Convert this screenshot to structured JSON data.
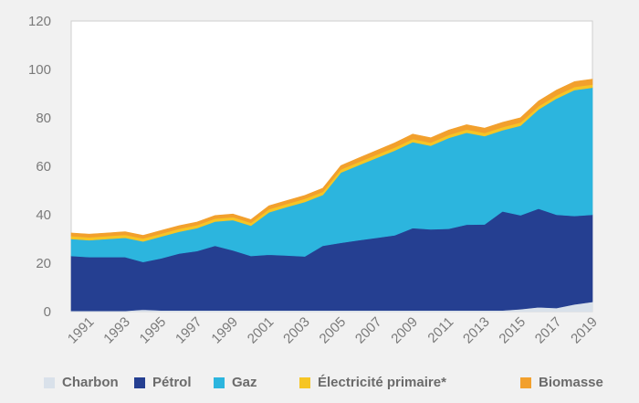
{
  "chart_data": {
    "type": "area",
    "stacked": true,
    "x": [
      1990,
      1991,
      1992,
      1993,
      1994,
      1995,
      1996,
      1997,
      1998,
      1999,
      2000,
      2001,
      2002,
      2003,
      2004,
      2005,
      2006,
      2007,
      2008,
      2009,
      2010,
      2011,
      2012,
      2013,
      2014,
      2015,
      2016,
      2017,
      2018,
      2019
    ],
    "x_tick_labels": [
      "1991",
      "1993",
      "1995",
      "1997",
      "1999",
      "2001",
      "2003",
      "2005",
      "2007",
      "2009",
      "2011",
      "2013",
      "2015",
      "2017",
      "2019"
    ],
    "y_ticks": [
      0,
      20,
      40,
      60,
      80,
      100,
      120
    ],
    "ylim": [
      0,
      120
    ],
    "grid": false,
    "legend_position": "bottom",
    "series": [
      {
        "name": "Charbon",
        "color": "#d9e1ea",
        "values": [
          0.3,
          0.3,
          0.3,
          0.3,
          0.8,
          0.5,
          0.5,
          0.5,
          0.5,
          0.5,
          0.5,
          0.5,
          0.5,
          0.5,
          0.5,
          0.5,
          0.5,
          0.5,
          0.5,
          0.5,
          0.5,
          0.5,
          0.5,
          0.5,
          0.5,
          1.0,
          1.8,
          1.5,
          3.0,
          4.0
        ]
      },
      {
        "name": "Pétrol",
        "color": "#253f91",
        "values": [
          22.7,
          22.2,
          22.2,
          22.2,
          19.7,
          21.5,
          23.5,
          24.5,
          26.7,
          24.8,
          22.5,
          23.0,
          22.7,
          22.3,
          26.7,
          27.9,
          29.0,
          30.0,
          31.0,
          34.0,
          33.5,
          33.7,
          35.4,
          35.5,
          40.9,
          38.8,
          40.7,
          38.5,
          36.5,
          36.0
        ]
      },
      {
        "name": "Gaz",
        "color": "#2cb5de",
        "values": [
          7.0,
          7.0,
          7.5,
          8.0,
          8.5,
          9.0,
          9.0,
          9.5,
          10.0,
          12.5,
          12.5,
          17.5,
          20.0,
          22.5,
          21.0,
          29.0,
          31.0,
          33.0,
          35.0,
          35.5,
          34.5,
          37.5,
          38.0,
          36.5,
          33.5,
          37.0,
          41.0,
          48.0,
          52.0,
          52.5
        ]
      },
      {
        "name": "Électricité primaire*",
        "color": "#f6c525",
        "values": [
          1.2,
          1.2,
          1.2,
          1.2,
          1.2,
          1.2,
          1.2,
          1.2,
          1.2,
          1.2,
          1.2,
          1.3,
          1.3,
          1.3,
          1.3,
          1.3,
          1.3,
          1.3,
          1.3,
          1.3,
          1.3,
          1.3,
          1.3,
          1.3,
          1.3,
          1.3,
          1.3,
          1.3,
          1.3,
          1.3
        ]
      },
      {
        "name": "Biomasse",
        "color": "#f2a02d",
        "values": [
          1.3,
          1.3,
          1.3,
          1.3,
          1.3,
          1.3,
          1.3,
          1.3,
          1.3,
          1.3,
          1.3,
          1.4,
          1.4,
          1.4,
          1.5,
          1.6,
          1.7,
          1.8,
          1.9,
          2.0,
          2.0,
          2.0,
          2.0,
          2.0,
          2.0,
          2.0,
          2.2,
          2.2,
          2.2,
          2.2
        ]
      }
    ]
  }
}
